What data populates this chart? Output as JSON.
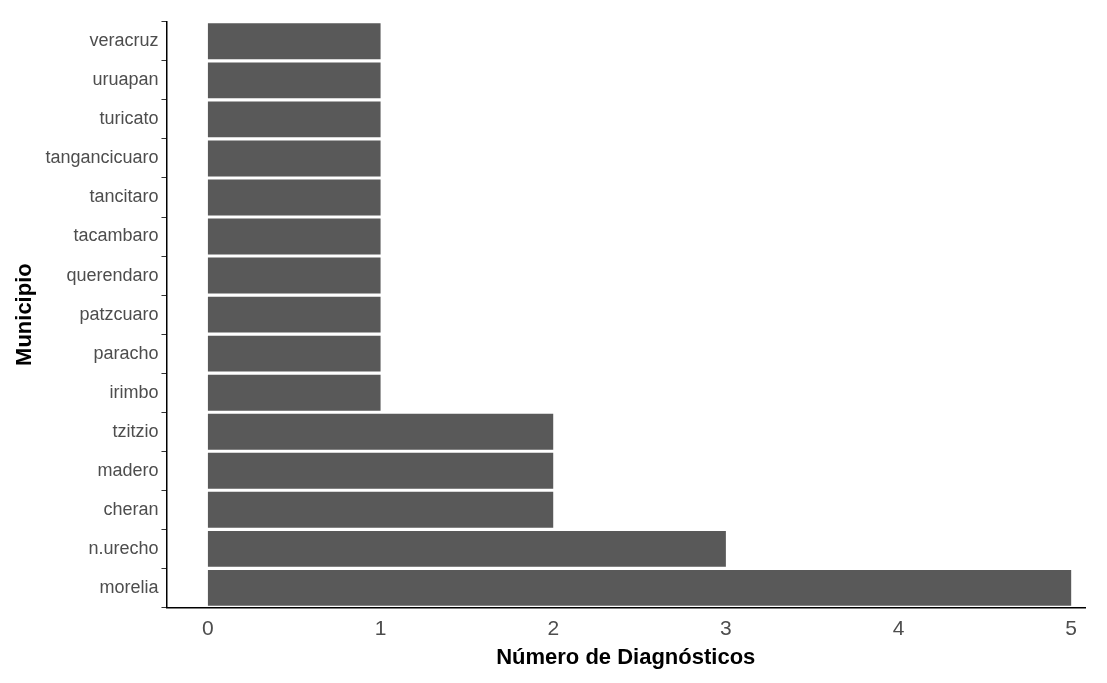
{
  "chart_data": {
    "type": "bar",
    "orientation": "horizontal",
    "xlabel": "Número de Diagnósticos",
    "ylabel": "Municipio",
    "categories": [
      "veracruz",
      "uruapan",
      "turicato",
      "tangancicuaro",
      "tancitaro",
      "tacambaro",
      "querendaro",
      "patzcuaro",
      "paracho",
      "irimbo",
      "tzitzio",
      "madero",
      "cheran",
      "n.urecho",
      "morelia"
    ],
    "values": [
      1,
      1,
      1,
      1,
      1,
      1,
      1,
      1,
      1,
      1,
      2,
      2,
      2,
      3,
      5
    ],
    "color": "#595959",
    "xlim": [
      -0.24,
      5.08
    ],
    "xticks": [
      0,
      1,
      2,
      3,
      4,
      5
    ],
    "grid": false,
    "legend": false
  }
}
